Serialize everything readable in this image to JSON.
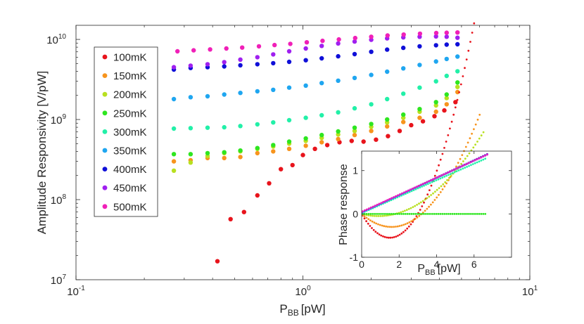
{
  "chart_data": [
    {
      "type": "scatter",
      "xlabel": "P",
      "xlabel_sub": "BB",
      "xlabel_unit": "[pW]",
      "ylabel": "Amplitude Responsivity [V/pW]",
      "xscale": "log",
      "yscale": "log",
      "xlim": [
        0.1,
        10
      ],
      "ylim": [
        10000000,
        15000000000
      ],
      "x_ticks": [
        {
          "v": 0.1,
          "base": "10",
          "exp": "-1"
        },
        {
          "v": 1,
          "base": "10",
          "exp": "0"
        },
        {
          "v": 10,
          "base": "10",
          "exp": "1"
        }
      ],
      "y_ticks": [
        {
          "v": 10000000,
          "base": "10",
          "exp": "7"
        },
        {
          "v": 100000000,
          "base": "10",
          "exp": "8"
        },
        {
          "v": 1000000000,
          "base": "10",
          "exp": "9"
        },
        {
          "v": 10000000000,
          "base": "10",
          "exp": "10"
        }
      ],
      "grid": false,
      "legend_position": "top-left",
      "series": [
        {
          "name": "100mK",
          "color": "#e8141c",
          "points": [
            [
              0.42,
              17000000
            ],
            [
              0.48,
              57000000
            ],
            [
              0.55,
              70000000
            ],
            [
              0.63,
              113000000
            ],
            [
              0.71,
              160000000
            ],
            [
              0.8,
              240000000
            ],
            [
              0.9,
              270000000
            ],
            [
              1.0,
              360000000
            ],
            [
              1.13,
              430000000
            ],
            [
              1.28,
              480000000
            ],
            [
              1.45,
              520000000
            ],
            [
              1.64,
              540000000
            ],
            [
              1.85,
              530000000
            ],
            [
              2.1,
              560000000
            ],
            [
              2.37,
              620000000
            ],
            [
              2.67,
              720000000
            ],
            [
              3.0,
              850000000
            ],
            [
              3.38,
              950000000
            ],
            [
              3.8,
              1100000000
            ],
            [
              4.2,
              1300000000
            ],
            [
              4.7,
              1650000000
            ]
          ]
        },
        {
          "name": "150mK",
          "color": "#f7941d",
          "points": [
            [
              0.27,
              300000000
            ],
            [
              0.32,
              310000000
            ],
            [
              0.38,
              330000000
            ],
            [
              0.45,
              330000000
            ],
            [
              0.53,
              340000000
            ],
            [
              0.63,
              380000000
            ],
            [
              0.74,
              400000000
            ],
            [
              0.87,
              430000000
            ],
            [
              1.03,
              470000000
            ],
            [
              1.21,
              520000000
            ],
            [
              1.43,
              570000000
            ],
            [
              1.69,
              640000000
            ],
            [
              2.0,
              720000000
            ],
            [
              2.35,
              820000000
            ],
            [
              2.77,
              930000000
            ],
            [
              3.27,
              1050000000
            ],
            [
              3.86,
              1250000000
            ],
            [
              4.3,
              1550000000
            ],
            [
              4.8,
              2200000000
            ]
          ]
        },
        {
          "name": "200mK",
          "color": "#b8e020",
          "points": [
            [
              0.27,
              230000000
            ],
            [
              0.32,
              290000000
            ],
            [
              0.38,
              350000000
            ],
            [
              0.45,
              380000000
            ],
            [
              0.53,
              400000000
            ],
            [
              0.63,
              430000000
            ],
            [
              0.74,
              460000000
            ],
            [
              0.87,
              500000000
            ],
            [
              1.03,
              540000000
            ],
            [
              1.21,
              590000000
            ],
            [
              1.43,
              650000000
            ],
            [
              1.69,
              720000000
            ],
            [
              2.0,
              810000000
            ],
            [
              2.35,
              920000000
            ],
            [
              2.77,
              1050000000
            ],
            [
              3.27,
              1250000000
            ],
            [
              3.86,
              1500000000
            ],
            [
              4.3,
              1850000000
            ],
            [
              4.8,
              2550000000
            ]
          ]
        },
        {
          "name": "250mK",
          "color": "#2ee620",
          "points": [
            [
              0.27,
              370000000
            ],
            [
              0.32,
              370000000
            ],
            [
              0.38,
              380000000
            ],
            [
              0.45,
              390000000
            ],
            [
              0.53,
              410000000
            ],
            [
              0.63,
              440000000
            ],
            [
              0.74,
              480000000
            ],
            [
              0.87,
              530000000
            ],
            [
              1.03,
              580000000
            ],
            [
              1.21,
              640000000
            ],
            [
              1.43,
              710000000
            ],
            [
              1.69,
              790000000
            ],
            [
              2.0,
              880000000
            ],
            [
              2.35,
              1000000000
            ],
            [
              2.77,
              1150000000
            ],
            [
              3.27,
              1350000000
            ],
            [
              3.86,
              1650000000
            ],
            [
              4.3,
              2050000000
            ],
            [
              4.8,
              2900000000
            ]
          ]
        },
        {
          "name": "300mK",
          "color": "#22f0a8",
          "points": [
            [
              0.27,
              770000000
            ],
            [
              0.32,
              780000000
            ],
            [
              0.38,
              790000000
            ],
            [
              0.45,
              800000000
            ],
            [
              0.53,
              830000000
            ],
            [
              0.63,
              870000000
            ],
            [
              0.74,
              920000000
            ],
            [
              0.87,
              980000000
            ],
            [
              1.03,
              1050000000
            ],
            [
              1.21,
              1130000000
            ],
            [
              1.43,
              1230000000
            ],
            [
              1.69,
              1380000000
            ],
            [
              2.0,
              1550000000
            ],
            [
              2.35,
              1800000000
            ],
            [
              2.77,
              2100000000
            ],
            [
              3.27,
              2500000000
            ],
            [
              3.86,
              3000000000
            ],
            [
              4.3,
              3500000000
            ],
            [
              4.8,
              4000000000
            ]
          ]
        },
        {
          "name": "350mK",
          "color": "#1fa6f0",
          "points": [
            [
              0.27,
              1800000000
            ],
            [
              0.32,
              1900000000
            ],
            [
              0.38,
              1950000000
            ],
            [
              0.45,
              2050000000
            ],
            [
              0.53,
              2150000000
            ],
            [
              0.63,
              2250000000
            ],
            [
              0.74,
              2350000000
            ],
            [
              0.87,
              2500000000
            ],
            [
              1.03,
              2650000000
            ],
            [
              1.21,
              2850000000
            ],
            [
              1.43,
              3050000000
            ],
            [
              1.69,
              3300000000
            ],
            [
              2.0,
              3600000000
            ],
            [
              2.35,
              3950000000
            ],
            [
              2.77,
              4350000000
            ],
            [
              3.27,
              4800000000
            ],
            [
              3.86,
              5300000000
            ],
            [
              4.3,
              5700000000
            ],
            [
              4.8,
              6100000000
            ]
          ]
        },
        {
          "name": "400mK",
          "color": "#0f0fd8",
          "points": [
            [
              0.27,
              4200000000
            ],
            [
              0.32,
              4400000000
            ],
            [
              0.38,
              4500000000
            ],
            [
              0.45,
              4600000000
            ],
            [
              0.53,
              4750000000
            ],
            [
              0.63,
              4900000000
            ],
            [
              0.74,
              5050000000
            ],
            [
              0.87,
              5250000000
            ],
            [
              1.03,
              5500000000
            ],
            [
              1.21,
              5800000000
            ],
            [
              1.43,
              6150000000
            ],
            [
              1.69,
              6550000000
            ],
            [
              2.0,
              7000000000
            ],
            [
              2.35,
              7450000000
            ],
            [
              2.77,
              7850000000
            ],
            [
              3.27,
              8200000000
            ],
            [
              3.86,
              8450000000
            ],
            [
              4.3,
              8600000000
            ],
            [
              4.8,
              8700000000
            ]
          ]
        },
        {
          "name": "450mK",
          "color": "#a020f0",
          "points": [
            [
              0.27,
              4500000000
            ],
            [
              0.32,
              4700000000
            ],
            [
              0.38,
              4900000000
            ],
            [
              0.45,
              5200000000
            ],
            [
              0.53,
              5600000000
            ],
            [
              0.63,
              6000000000
            ],
            [
              0.74,
              6500000000
            ],
            [
              0.87,
              7100000000
            ],
            [
              1.03,
              7700000000
            ],
            [
              1.21,
              8300000000
            ],
            [
              1.43,
              8900000000
            ],
            [
              1.69,
              9400000000
            ],
            [
              2.0,
              9900000000
            ],
            [
              2.35,
              10300000000
            ],
            [
              2.77,
              10600000000
            ],
            [
              3.27,
              10800000000
            ],
            [
              3.86,
              10900000000
            ],
            [
              4.3,
              10800000000
            ],
            [
              4.8,
              10500000000
            ]
          ]
        },
        {
          "name": "500mK",
          "color": "#f020b8",
          "points": [
            [
              0.28,
              7100000000
            ],
            [
              0.33,
              7300000000
            ],
            [
              0.39,
              7500000000
            ],
            [
              0.46,
              7700000000
            ],
            [
              0.54,
              7900000000
            ],
            [
              0.64,
              8200000000
            ],
            [
              0.75,
              8500000000
            ],
            [
              0.88,
              8800000000
            ],
            [
              1.04,
              9200000000
            ],
            [
              1.22,
              9600000000
            ],
            [
              1.44,
              10000000000
            ],
            [
              1.7,
              10400000000
            ],
            [
              2.0,
              10800000000
            ],
            [
              2.36,
              11200000000
            ],
            [
              2.78,
              11500000000
            ],
            [
              3.28,
              11800000000
            ],
            [
              3.87,
              12000000000
            ],
            [
              4.3,
              12100000000
            ],
            [
              4.8,
              12200000000
            ]
          ]
        }
      ]
    },
    {
      "type": "scatter",
      "inset": true,
      "xlabel": "P",
      "xlabel_sub": "BB",
      "xlabel_unit": "[pW]",
      "ylabel": "Phase response",
      "xlim": [
        0,
        8
      ],
      "ylim": [
        -1,
        1.45
      ],
      "x_ticks": [
        0,
        2,
        4,
        6
      ],
      "y_ticks": [
        -1,
        0,
        1
      ],
      "series": [
        {
          "name": "100mK",
          "color": "#e8141c",
          "curve": "quadratic",
          "x_range": [
            0.05,
            6.0
          ],
          "min_x": 1.5,
          "min_y": -0.55
        },
        {
          "name": "150mK",
          "color": "#f7941d",
          "curve": "quadratic",
          "x_range": [
            0.05,
            6.3
          ],
          "min_x": 1.6,
          "min_y": -0.3
        },
        {
          "name": "200mK",
          "color": "#b8e020",
          "curve": "quadratic",
          "x_range": [
            0.05,
            6.5
          ],
          "min_x": 0.9,
          "min_y": -0.05
        },
        {
          "name": "250mK",
          "color": "#2ee620",
          "curve": "quadratic",
          "x_range": [
            0.05,
            6.6
          ],
          "min_x": 0.5,
          "min_y": 0.0
        },
        {
          "name": "300mK",
          "color": "#22f0a8",
          "curve": "linear",
          "x_range": [
            0.05,
            6.6
          ],
          "y0": 0.02,
          "slope": 0.19
        },
        {
          "name": "350mK",
          "color": "#1fa6f0",
          "curve": "linear",
          "x_range": [
            0.05,
            6.6
          ],
          "y0": 0.03,
          "slope": 0.2
        },
        {
          "name": "400mK",
          "color": "#0f0fd8",
          "curve": "linear",
          "x_range": [
            0.05,
            6.7
          ],
          "y0": 0.04,
          "slope": 0.2
        },
        {
          "name": "450mK",
          "color": "#a020f0",
          "curve": "linear",
          "x_range": [
            0.05,
            6.7
          ],
          "y0": 0.04,
          "slope": 0.198
        },
        {
          "name": "500mK",
          "color": "#f020b8",
          "curve": "linear",
          "x_range": [
            0.05,
            6.7
          ],
          "y0": 0.05,
          "slope": 0.197
        }
      ]
    }
  ]
}
